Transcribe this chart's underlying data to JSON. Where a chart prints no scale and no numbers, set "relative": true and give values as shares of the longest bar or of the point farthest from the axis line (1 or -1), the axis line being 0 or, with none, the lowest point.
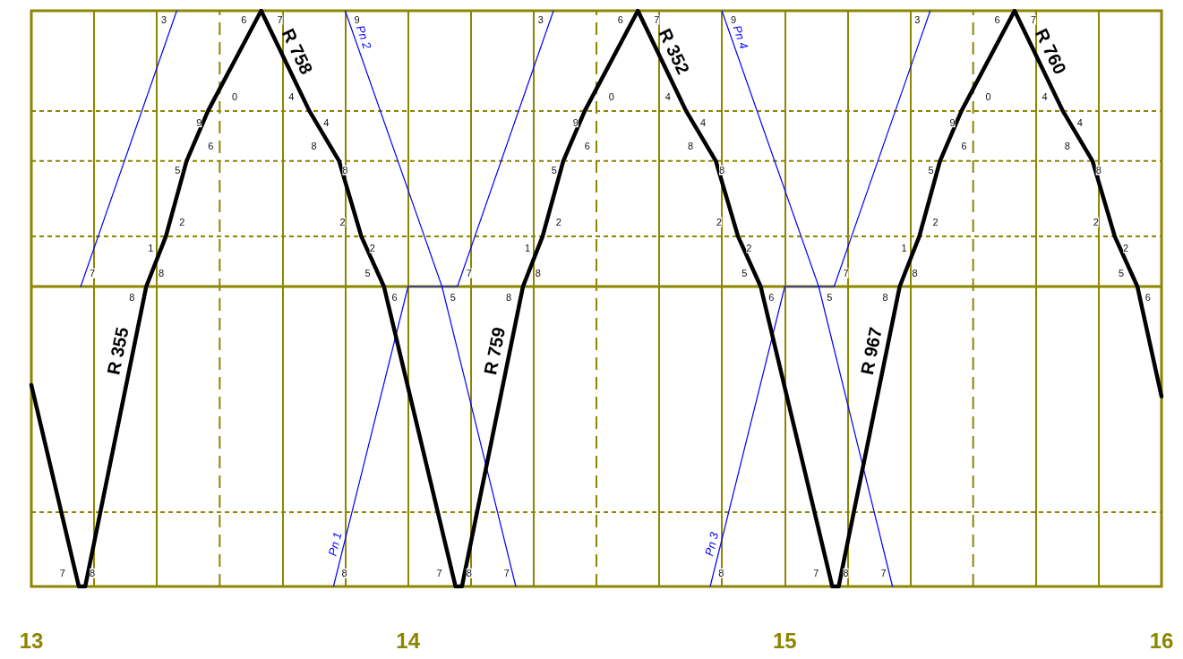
{
  "chart_data": {
    "type": "line",
    "relative": true,
    "grid": "x",
    "tick_labels": "x",
    "marker": "none",
    "line_style": "solid",
    "xlim": [
      13,
      16
    ],
    "xticks": [
      13,
      {
        "value": 13.1667,
        "label": null
      },
      {
        "value": 13.3333,
        "label": null
      },
      {
        "value": 13.6667,
        "label": null
      },
      {
        "value": 13.8333,
        "label": null
      },
      14,
      {
        "value": 14.1667,
        "label": null
      },
      {
        "value": 14.3333,
        "label": null
      },
      {
        "value": 14.6667,
        "label": null
      },
      {
        "value": 14.8333,
        "label": null
      },
      15,
      {
        "value": 15.1667,
        "label": null
      },
      {
        "value": 15.3333,
        "label": null
      },
      {
        "value": 15.6667,
        "label": null
      },
      {
        "value": 15.8333,
        "label": null
      },
      16
    ],
    "series": [
      {
        "color": "#000000",
        "x": [
          13.0,
          13.126,
          13.143,
          13.305,
          13.357,
          13.412,
          13.469,
          13.61,
          13.738,
          13.817,
          13.876,
          13.936,
          14.126,
          14.143,
          14.305,
          14.357,
          14.412,
          14.469,
          14.61,
          14.738,
          14.817,
          14.876,
          14.936,
          15.126,
          15.143,
          15.305,
          15.357,
          15.412,
          15.469,
          15.61,
          15.738,
          15.817,
          15.876,
          15.936,
          16.0
        ],
        "values": [
          0.35,
          0,
          0,
          0.521,
          0.608,
          0.739,
          0.826,
          1,
          0.826,
          0.739,
          0.608,
          0.521,
          0,
          0,
          0.521,
          0.608,
          0.739,
          0.826,
          1,
          0.826,
          0.739,
          0.608,
          0.521,
          0,
          0,
          0.521,
          0.608,
          0.739,
          0.826,
          1,
          0.826,
          0.739,
          0.608,
          0.521,
          0.33
        ]
      },
      {
        "color": "#0000ff",
        "x": [
          13.131,
          13.386,
          13.6,
          13.802,
          14.0,
          14.131,
          14.386,
          14.6,
          14.802,
          15.0,
          15.131,
          15.386
        ],
        "values": [
          0.521,
          1,
          null,
          0,
          0.521,
          0.521,
          1,
          null,
          0,
          0.521,
          0.521,
          1
        ]
      },
      {
        "color": "#0000ff",
        "x": [
          13.833,
          14.09,
          14.286,
          14.5,
          14.833,
          15.09,
          15.286
        ],
        "values": [
          1,
          0.521,
          0,
          null,
          1,
          0.521,
          0
        ]
      }
    ],
    "ref_lines": [
      {
        "axis": "y",
        "value": 0.129,
        "line_style": "dashed"
      },
      {
        "axis": "y",
        "value": 0.521,
        "line_style": "solid"
      },
      {
        "axis": "y",
        "value": 0.608,
        "line_style": "dashed"
      },
      {
        "axis": "y",
        "value": 0.739,
        "line_style": "dashed"
      },
      {
        "axis": "y",
        "value": 0.826,
        "line_style": "dashed"
      },
      {
        "axis": "x",
        "value": 13.5,
        "line_style": "dashed"
      },
      {
        "axis": "x",
        "value": 14.5,
        "line_style": "dashed"
      },
      {
        "axis": "x",
        "value": 15.5,
        "line_style": "dashed"
      }
    ],
    "annotations": [
      {
        "text": "R 355",
        "x": 13.269,
        "y": 0.404
      },
      {
        "text": "R 758",
        "x": 13.67,
        "y": 0.918
      },
      {
        "text": "Pn 2",
        "x": 13.86,
        "y": 0.949
      },
      {
        "text": "Pn 1",
        "x": 13.829,
        "y": 0.07
      },
      {
        "text": "R 759",
        "x": 14.269,
        "y": 0.404
      },
      {
        "text": "R 352",
        "x": 14.67,
        "y": 0.918
      },
      {
        "text": "Pn 4",
        "x": 14.86,
        "y": 0.949
      },
      {
        "text": "Pn 3",
        "x": 14.829,
        "y": 0.07
      },
      {
        "text": "R 967",
        "x": 15.269,
        "y": 0.404
      },
      {
        "text": "R 760",
        "x": 15.67,
        "y": 0.918
      },
      {
        "text": "3",
        "x": 13.352,
        "y": 0.984
      },
      {
        "text": "6",
        "x": 13.564,
        "y": 0.984
      },
      {
        "text": "7",
        "x": 13.66,
        "y": 0.984
      },
      {
        "text": "9",
        "x": 13.864,
        "y": 0.984
      },
      {
        "text": "0",
        "x": 13.54,
        "y": 0.851
      },
      {
        "text": "4",
        "x": 13.69,
        "y": 0.851
      },
      {
        "text": "9",
        "x": 13.445,
        "y": 0.806
      },
      {
        "text": "4",
        "x": 13.783,
        "y": 0.806
      },
      {
        "text": "6",
        "x": 13.476,
        "y": 0.765
      },
      {
        "text": "8",
        "x": 13.75,
        "y": 0.765
      },
      {
        "text": "5",
        "x": 13.388,
        "y": 0.723
      },
      {
        "text": "8",
        "x": 13.833,
        "y": 0.723
      },
      {
        "text": "2",
        "x": 13.4,
        "y": 0.633
      },
      {
        "text": "2",
        "x": 13.826,
        "y": 0.633
      },
      {
        "text": "1",
        "x": 13.317,
        "y": 0.588
      },
      {
        "text": "2",
        "x": 13.905,
        "y": 0.588
      },
      {
        "text": "7",
        "x": 13.162,
        "y": 0.544
      },
      {
        "text": "8",
        "x": 13.345,
        "y": 0.544
      },
      {
        "text": "5",
        "x": 13.893,
        "y": 0.544
      },
      {
        "text": "8",
        "x": 13.267,
        "y": 0.502
      },
      {
        "text": "6",
        "x": 13.964,
        "y": 0.502
      },
      {
        "text": "7",
        "x": 13.083,
        "y": 0.023
      },
      {
        "text": "8",
        "x": 13.162,
        "y": 0.023
      },
      {
        "text": "8",
        "x": 13.831,
        "y": 0.023
      },
      {
        "text": "3",
        "x": 14.352,
        "y": 0.984
      },
      {
        "text": "6",
        "x": 14.564,
        "y": 0.984
      },
      {
        "text": "7",
        "x": 14.66,
        "y": 0.984
      },
      {
        "text": "9",
        "x": 14.864,
        "y": 0.984
      },
      {
        "text": "0",
        "x": 14.54,
        "y": 0.851
      },
      {
        "text": "4",
        "x": 14.69,
        "y": 0.851
      },
      {
        "text": "9",
        "x": 14.445,
        "y": 0.806
      },
      {
        "text": "4",
        "x": 14.783,
        "y": 0.806
      },
      {
        "text": "6",
        "x": 14.476,
        "y": 0.765
      },
      {
        "text": "8",
        "x": 14.75,
        "y": 0.765
      },
      {
        "text": "5",
        "x": 14.388,
        "y": 0.723
      },
      {
        "text": "8",
        "x": 14.833,
        "y": 0.723
      },
      {
        "text": "2",
        "x": 14.4,
        "y": 0.633
      },
      {
        "text": "2",
        "x": 14.826,
        "y": 0.633
      },
      {
        "text": "1",
        "x": 14.317,
        "y": 0.588
      },
      {
        "text": "2",
        "x": 14.905,
        "y": 0.588
      },
      {
        "text": "7",
        "x": 14.162,
        "y": 0.544
      },
      {
        "text": "8",
        "x": 14.345,
        "y": 0.544
      },
      {
        "text": "5",
        "x": 14.893,
        "y": 0.544
      },
      {
        "text": "8",
        "x": 14.267,
        "y": 0.502
      },
      {
        "text": "6",
        "x": 14.964,
        "y": 0.502
      },
      {
        "text": "5",
        "x": 14.119,
        "y": 0.502
      },
      {
        "text": "7",
        "x": 14.083,
        "y": 0.023
      },
      {
        "text": "8",
        "x": 14.162,
        "y": 0.023
      },
      {
        "text": "7",
        "x": 14.262,
        "y": 0.023
      },
      {
        "text": "8",
        "x": 14.831,
        "y": 0.023
      },
      {
        "text": "3",
        "x": 15.352,
        "y": 0.984
      },
      {
        "text": "6",
        "x": 15.564,
        "y": 0.984
      },
      {
        "text": "7",
        "x": 15.66,
        "y": 0.984
      },
      {
        "text": "0",
        "x": 15.54,
        "y": 0.851
      },
      {
        "text": "4",
        "x": 15.69,
        "y": 0.851
      },
      {
        "text": "9",
        "x": 15.445,
        "y": 0.806
      },
      {
        "text": "4",
        "x": 15.783,
        "y": 0.806
      },
      {
        "text": "6",
        "x": 15.476,
        "y": 0.765
      },
      {
        "text": "8",
        "x": 15.75,
        "y": 0.765
      },
      {
        "text": "5",
        "x": 15.388,
        "y": 0.723
      },
      {
        "text": "8",
        "x": 15.833,
        "y": 0.723
      },
      {
        "text": "2",
        "x": 15.4,
        "y": 0.633
      },
      {
        "text": "2",
        "x": 15.826,
        "y": 0.633
      },
      {
        "text": "1",
        "x": 15.317,
        "y": 0.588
      },
      {
        "text": "2",
        "x": 15.905,
        "y": 0.588
      },
      {
        "text": "7",
        "x": 15.162,
        "y": 0.544
      },
      {
        "text": "8",
        "x": 15.345,
        "y": 0.544
      },
      {
        "text": "5",
        "x": 15.893,
        "y": 0.544
      },
      {
        "text": "8",
        "x": 15.267,
        "y": 0.502
      },
      {
        "text": "6",
        "x": 15.964,
        "y": 0.502
      },
      {
        "text": "5",
        "x": 15.119,
        "y": 0.502
      },
      {
        "text": "7",
        "x": 15.083,
        "y": 0.023
      },
      {
        "text": "8",
        "x": 15.162,
        "y": 0.023
      },
      {
        "text": "7",
        "x": 15.262,
        "y": 0.023
      }
    ]
  }
}
